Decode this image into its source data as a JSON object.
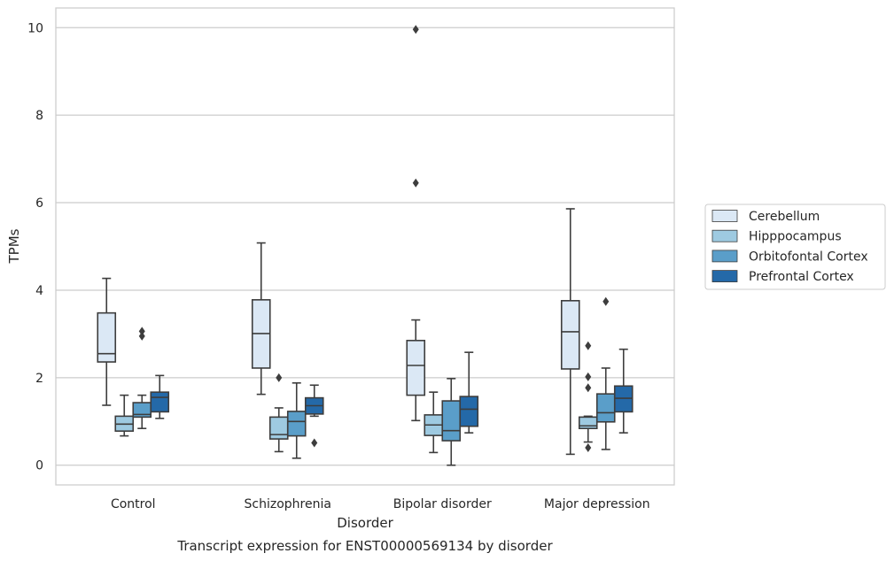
{
  "chart_data": {
    "type": "box",
    "title": "Transcript expression for ENST00000569134 by disorder",
    "xlabel": "Disorder",
    "ylabel": "TPMs",
    "ylim": [
      -0.45,
      10.45
    ],
    "yticks": [
      0,
      2,
      4,
      6,
      8,
      10
    ],
    "grid": true,
    "legend_position": "right",
    "categories": [
      "Control",
      "Schizophrenia",
      "Bipolar disorder",
      "Major depression"
    ],
    "series": [
      {
        "name": "Cerebellum",
        "color": "#dbe8f5",
        "boxes": [
          {
            "whislo": 1.37,
            "q1": 2.36,
            "med": 2.55,
            "q3": 3.48,
            "whishi": 4.27,
            "fliers": []
          },
          {
            "whislo": 1.62,
            "q1": 2.22,
            "med": 3.01,
            "q3": 3.78,
            "whishi": 5.08,
            "fliers": []
          },
          {
            "whislo": 1.02,
            "q1": 1.6,
            "med": 2.28,
            "q3": 2.85,
            "whishi": 3.32,
            "fliers": [
              6.45,
              9.96
            ]
          },
          {
            "whislo": 0.25,
            "q1": 2.2,
            "med": 3.05,
            "q3": 3.76,
            "whishi": 5.86,
            "fliers": []
          }
        ]
      },
      {
        "name": "Hipppocampus",
        "color": "#9ecae1",
        "boxes": [
          {
            "whislo": 0.67,
            "q1": 0.78,
            "med": 0.94,
            "q3": 1.12,
            "whishi": 1.6,
            "fliers": []
          },
          {
            "whislo": 0.31,
            "q1": 0.6,
            "med": 0.7,
            "q3": 1.1,
            "whishi": 1.31,
            "fliers": [
              2.0
            ]
          },
          {
            "whislo": 0.29,
            "q1": 0.68,
            "med": 0.92,
            "q3": 1.15,
            "whishi": 1.67,
            "fliers": []
          },
          {
            "whislo": 0.53,
            "q1": 0.84,
            "med": 0.9,
            "q3": 1.1,
            "whishi": 1.12,
            "fliers": [
              0.4,
              1.77,
              2.02,
              2.73
            ]
          }
        ]
      },
      {
        "name": "Orbitofontal Cortex",
        "color": "#5a9ec9",
        "boxes": [
          {
            "whislo": 0.84,
            "q1": 1.1,
            "med": 1.16,
            "q3": 1.43,
            "whishi": 1.6,
            "fliers": [
              2.95,
              3.06
            ]
          },
          {
            "whislo": 0.16,
            "q1": 0.67,
            "med": 1.0,
            "q3": 1.23,
            "whishi": 1.88,
            "fliers": []
          },
          {
            "whislo": 0.0,
            "q1": 0.56,
            "med": 0.79,
            "q3": 1.47,
            "whishi": 1.98,
            "fliers": []
          },
          {
            "whislo": 0.36,
            "q1": 0.99,
            "med": 1.2,
            "q3": 1.63,
            "whishi": 2.22,
            "fliers": [
              3.74
            ]
          }
        ]
      },
      {
        "name": "Prefrontal Cortex",
        "color": "#2469a8",
        "boxes": [
          {
            "whislo": 1.07,
            "q1": 1.22,
            "med": 1.55,
            "q3": 1.67,
            "whishi": 2.05,
            "fliers": []
          },
          {
            "whislo": 1.12,
            "q1": 1.17,
            "med": 1.36,
            "q3": 1.54,
            "whishi": 1.83,
            "fliers": [
              0.51
            ]
          },
          {
            "whislo": 0.74,
            "q1": 0.89,
            "med": 1.28,
            "q3": 1.57,
            "whishi": 2.58,
            "fliers": []
          },
          {
            "whislo": 0.74,
            "q1": 1.22,
            "med": 1.53,
            "q3": 1.81,
            "whishi": 2.65,
            "fliers": []
          }
        ]
      }
    ]
  }
}
